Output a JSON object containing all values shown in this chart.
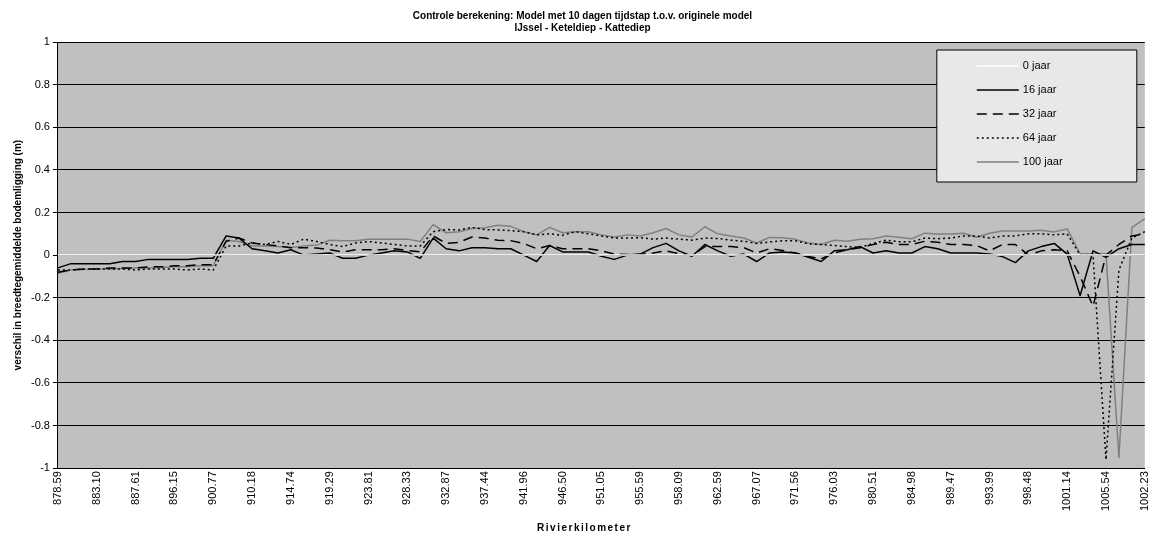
{
  "chart_data": {
    "type": "line",
    "title": "Controle berekening: Model met 10 dagen tijdstap t.o.v. originele model",
    "subtitle": "IJssel - Keteldiep - Kattediep",
    "xlabel": "Rivierkilometer",
    "ylabel": "verschil in breedtegemiddelde bodemligging (m)",
    "categories": [
      "878.59",
      null,
      null,
      "883.10",
      null,
      null,
      "887.61",
      null,
      null,
      "896.15",
      null,
      null,
      "900.77",
      null,
      null,
      "910.18",
      null,
      null,
      "914.74",
      null,
      null,
      "919.29",
      null,
      null,
      "923.81",
      null,
      null,
      "928.33",
      null,
      null,
      "932.87",
      null,
      null,
      "937.44",
      null,
      null,
      "941.96",
      null,
      null,
      "946.50",
      null,
      null,
      "951.05",
      null,
      null,
      "955.59",
      null,
      null,
      "958.09",
      null,
      null,
      "962.59",
      null,
      null,
      "967.07",
      null,
      null,
      "971.56",
      null,
      null,
      "976.03",
      null,
      null,
      "980.51",
      null,
      null,
      "984.98",
      null,
      null,
      "989.47",
      null,
      null,
      "993.99",
      null,
      null,
      "998.48",
      null,
      null,
      "1001.14",
      null,
      null,
      "1005.54",
      null,
      null,
      "1002.23"
    ],
    "series": [
      {
        "name": "0 jaar",
        "color": "#ffffff",
        "line_style": "solid",
        "values": [
          0,
          0,
          0,
          0,
          0,
          0,
          0,
          0,
          0,
          0,
          0,
          0,
          0,
          0,
          0,
          0,
          0,
          0,
          0,
          0,
          0,
          0,
          0,
          0,
          0,
          0,
          0,
          0,
          0,
          0,
          0,
          0,
          0,
          0,
          0,
          0,
          0,
          0,
          0,
          0,
          0,
          0,
          0,
          0,
          0,
          0,
          0,
          0,
          0,
          0,
          0,
          0,
          0,
          0,
          0,
          0,
          0,
          0,
          0,
          0,
          0,
          0,
          0,
          0,
          0,
          0,
          0,
          0,
          0,
          0,
          0,
          0,
          0,
          0,
          0,
          0,
          0,
          0,
          0,
          0,
          0,
          0,
          0,
          0,
          0
        ]
      },
      {
        "name": "16 jaar",
        "color": "#000000",
        "line_style": "solid",
        "values": [
          -0.06,
          -0.04,
          -0.04,
          -0.04,
          -0.04,
          -0.03,
          -0.03,
          -0.02,
          -0.02,
          -0.02,
          -0.02,
          -0.015,
          -0.015,
          0.09,
          0.08,
          0.03,
          0.02,
          0.01,
          0.025,
          0,
          0.005,
          0.01,
          -0.015,
          -0.015,
          0,
          0.01,
          0.02,
          0.015,
          -0.015,
          0.08,
          0.03,
          0.02,
          0.035,
          0.035,
          0.03,
          0.03,
          0,
          -0.03,
          0.045,
          0.015,
          0.015,
          0.015,
          -0.005,
          -0.02,
          0,
          0.005,
          0.035,
          0.055,
          0.02,
          -0.005,
          0.05,
          0.02,
          -0.005,
          0.005,
          -0.03,
          0.01,
          0.015,
          0.01,
          -0.01,
          -0.03,
          0.02,
          0.025,
          0.04,
          0.01,
          0.02,
          0.01,
          0.01,
          0.04,
          0.03,
          0.01,
          0.01,
          0.01,
          0.005,
          -0.007,
          -0.035,
          0.02,
          0.04,
          0.055,
          0.005,
          -0.19,
          0.02,
          -0.01,
          0.03,
          0.05,
          0.05
        ]
      },
      {
        "name": "32 jaar",
        "color": "#000000",
        "line_style": "dashed",
        "values": [
          -0.08,
          -0.07,
          -0.065,
          -0.065,
          -0.06,
          -0.06,
          -0.06,
          -0.055,
          -0.055,
          -0.05,
          -0.05,
          -0.045,
          -0.045,
          0.065,
          0.08,
          0.057,
          0.05,
          0.043,
          0.035,
          0.035,
          0.033,
          0.025,
          0.015,
          0.025,
          0.025,
          0.025,
          0.03,
          0.022,
          0.015,
          0.09,
          0.055,
          0.06,
          0.085,
          0.08,
          0.07,
          0.068,
          0.055,
          0.03,
          0.045,
          0.03,
          0.03,
          0.03,
          0.02,
          0.005,
          0.003,
          0.003,
          0.01,
          0.02,
          0.007,
          -0.003,
          0.04,
          0.04,
          0.04,
          0.035,
          0.01,
          0.03,
          0.022,
          0.01,
          -0.007,
          -0.017,
          0.01,
          0.025,
          0.035,
          0.05,
          0.06,
          0.05,
          0.05,
          0.065,
          0.06,
          0.05,
          0.05,
          0.045,
          0.02,
          0.05,
          0.05,
          0,
          0.02,
          0.025,
          0.02,
          -0.1,
          -0.24,
          0,
          0.05,
          0.09,
          0.1
        ]
      },
      {
        "name": "64 jaar",
        "color": "#000000",
        "line_style": "dotted",
        "values": [
          -0.07,
          -0.07,
          -0.065,
          -0.065,
          -0.065,
          -0.065,
          -0.07,
          -0.065,
          -0.065,
          -0.065,
          -0.07,
          -0.065,
          -0.07,
          0.043,
          0.043,
          0.057,
          0.05,
          0.064,
          0.05,
          0.075,
          0.064,
          0.05,
          0.04,
          0.057,
          0.064,
          0.057,
          0.05,
          0.043,
          0.043,
          0.11,
          0.12,
          0.118,
          0.13,
          0.12,
          0.118,
          0.115,
          0.11,
          0.095,
          0.1,
          0.093,
          0.11,
          0.1,
          0.09,
          0.08,
          0.08,
          0.082,
          0.075,
          0.08,
          0.075,
          0.07,
          0.08,
          0.078,
          0.07,
          0.065,
          0.055,
          0.062,
          0.067,
          0.067,
          0.053,
          0.05,
          0.045,
          0.04,
          0.036,
          0.055,
          0.07,
          0.063,
          0.063,
          0.08,
          0.077,
          0.08,
          0.09,
          0.09,
          0.08,
          0.09,
          0.09,
          0.1,
          0.1,
          0.095,
          0.1,
          0,
          0,
          -0.96,
          -0.07,
          0.08,
          0.11
        ]
      },
      {
        "name": "100 jaar",
        "color": "#808080",
        "line_style": "solid",
        "values": [
          -0.085,
          -0.07,
          -0.067,
          -0.065,
          -0.065,
          -0.063,
          -0.06,
          -0.06,
          -0.058,
          -0.055,
          -0.055,
          -0.05,
          -0.05,
          0.07,
          0.064,
          0.043,
          0.043,
          0.04,
          0.036,
          0.043,
          0.047,
          0.07,
          0.067,
          0.067,
          0.075,
          0.075,
          0.075,
          0.075,
          0.064,
          0.143,
          0.105,
          0.11,
          0.125,
          0.128,
          0.14,
          0.135,
          0.11,
          0.095,
          0.13,
          0.105,
          0.11,
          0.11,
          0.095,
          0.085,
          0.095,
          0.09,
          0.105,
          0.125,
          0.095,
          0.085,
          0.133,
          0.1,
          0.09,
          0.08,
          0.057,
          0.083,
          0.081,
          0.074,
          0.057,
          0.05,
          0.07,
          0.065,
          0.075,
          0.077,
          0.09,
          0.084,
          0.077,
          0.103,
          0.099,
          0.099,
          0.103,
          0.084,
          0.103,
          0.113,
          0.113,
          0.113,
          0.117,
          0.109,
          0.123,
          0.007,
          0.007,
          0.007,
          -0.95,
          0.13,
          0.17
        ]
      }
    ],
    "ylim": [
      -1,
      1
    ],
    "yticks": [
      -1,
      -0.8,
      -0.6,
      -0.4,
      -0.2,
      0,
      0.2,
      0.4,
      0.6,
      0.8,
      1
    ],
    "grid": "y",
    "legend": "top right"
  }
}
